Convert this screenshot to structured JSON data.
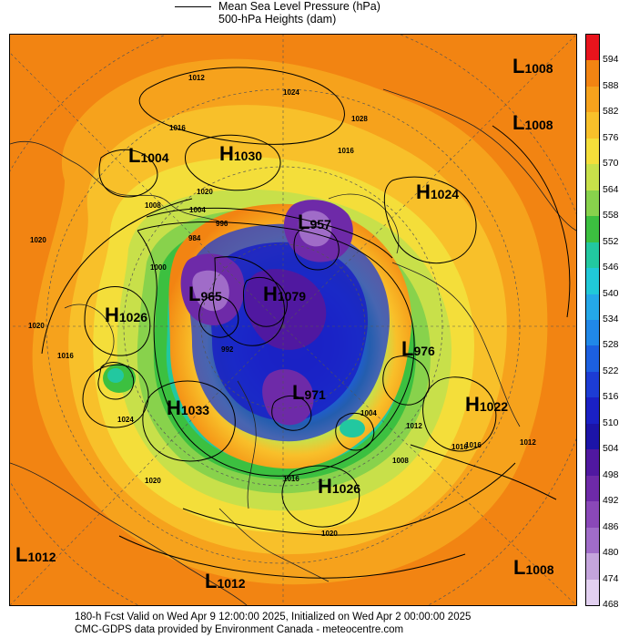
{
  "header": {
    "line1": "Mean Sea Level Pressure (hPa)",
    "line2": "500-hPa Heights (dam)"
  },
  "footer": {
    "line1": "180-h Fcst Valid on Wed Apr  9 12:00:00 2025, Initialized on Wed Apr  2 00:00:00 2025",
    "line2": "CMC-GDPS data provided by Environment Canada - meteocentre.com"
  },
  "colorbar": {
    "levels": [
      "594",
      "588",
      "582",
      "576",
      "570",
      "564",
      "558",
      "552",
      "546",
      "540",
      "534",
      "528",
      "522",
      "516",
      "510",
      "504",
      "498",
      "492",
      "486",
      "480",
      "474",
      "468"
    ],
    "colors": [
      "#e8141c",
      "#f28412",
      "#f6a21c",
      "#f8c02a",
      "#f4de3a",
      "#c8e04a",
      "#88d24c",
      "#3cc040",
      "#22c8a0",
      "#20c8d8",
      "#24a8e8",
      "#2088e8",
      "#1c60e0",
      "#1c3cd4",
      "#1a20c4",
      "#1c14a8",
      "#5018a0",
      "#6e2aa8",
      "#8a48b8",
      "#a06cc8",
      "#c4a4dc",
      "#e2d0f0"
    ]
  },
  "pressure_centers": [
    {
      "type": "L",
      "value": "1008"
    },
    {
      "type": "L",
      "value": "1008"
    },
    {
      "type": "L",
      "value": "1004"
    },
    {
      "type": "H",
      "value": "1030"
    },
    {
      "type": "H",
      "value": "1024"
    },
    {
      "type": "L",
      "value": "957"
    },
    {
      "type": "L",
      "value": "965"
    },
    {
      "type": "H",
      "value": "1079"
    },
    {
      "type": "H",
      "value": "1026"
    },
    {
      "type": "L",
      "value": "976"
    },
    {
      "type": "H",
      "value": "1033"
    },
    {
      "type": "L",
      "value": "971"
    },
    {
      "type": "H",
      "value": "1022"
    },
    {
      "type": "H",
      "value": "1026"
    },
    {
      "type": "L",
      "value": "1012"
    },
    {
      "type": "L",
      "value": "1012"
    },
    {
      "type": "L",
      "value": "1008"
    }
  ],
  "isobar_labels": [
    "1012",
    "1016",
    "1024",
    "1028",
    "1016",
    "1020",
    "1004",
    "1008",
    "1000",
    "996",
    "984",
    "992",
    "1020",
    "1016",
    "1020",
    "1024",
    "1004",
    "1008",
    "1012",
    "1016",
    "1016",
    "1020",
    "1020",
    "1016",
    "1012"
  ]
}
